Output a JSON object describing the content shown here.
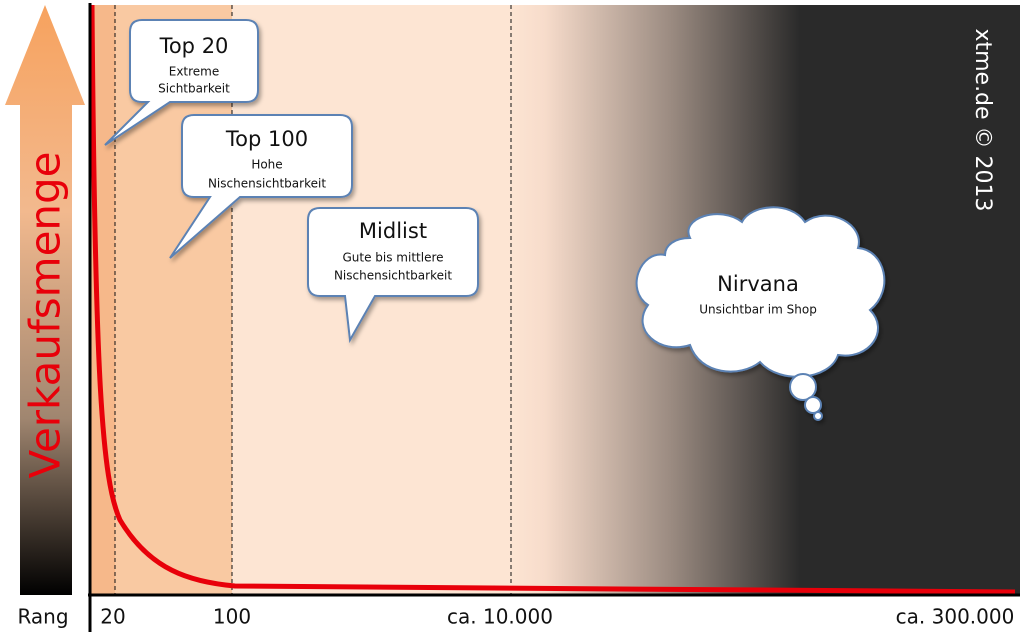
{
  "y_axis_label": "Verkaufsmenge",
  "x_axis": {
    "label": "Rang",
    "ticks": [
      "20",
      "100",
      "ca. 10.000",
      "ca. 300.000"
    ]
  },
  "callouts": [
    {
      "title": "Top 20",
      "text": [
        "Extreme",
        "Sichtbarkeit"
      ]
    },
    {
      "title": "Top 100",
      "text": [
        "Hohe",
        "Nischensichtbarkeit"
      ]
    },
    {
      "title": "Midlist",
      "text": [
        "Gute bis mittlere",
        "Nischensichtbarkeit"
      ]
    }
  ],
  "cloud": {
    "title": "Nirvana",
    "text": "Unsichtbar im Shop"
  },
  "credit": "xtme.de © 2013"
}
